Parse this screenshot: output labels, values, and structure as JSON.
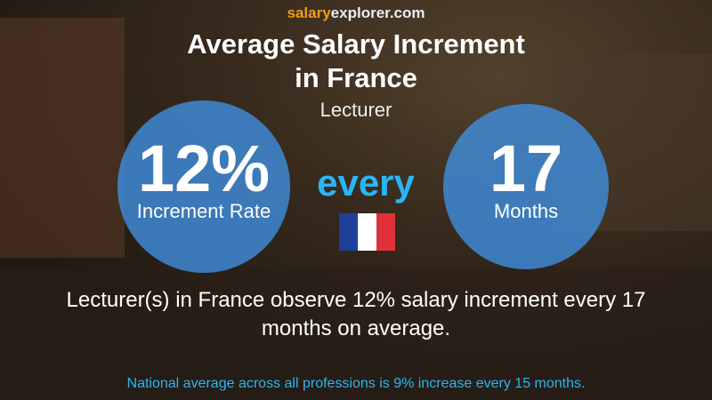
{
  "brand": {
    "part1": "salary",
    "part2": "explorer.com"
  },
  "title_lines": [
    "Average Salary Increment",
    "in France"
  ],
  "subtitle": "Lecturer",
  "left_circle": {
    "value": "12%",
    "label": "Increment Rate"
  },
  "connector": "every",
  "right_circle": {
    "value": "17",
    "label": "Months"
  },
  "description_lines": [
    "Lecturer(s) in France observe 12% salary increment every 17",
    "months on average."
  ],
  "footer": "National average across all professions is 9% increase every 15 months."
}
